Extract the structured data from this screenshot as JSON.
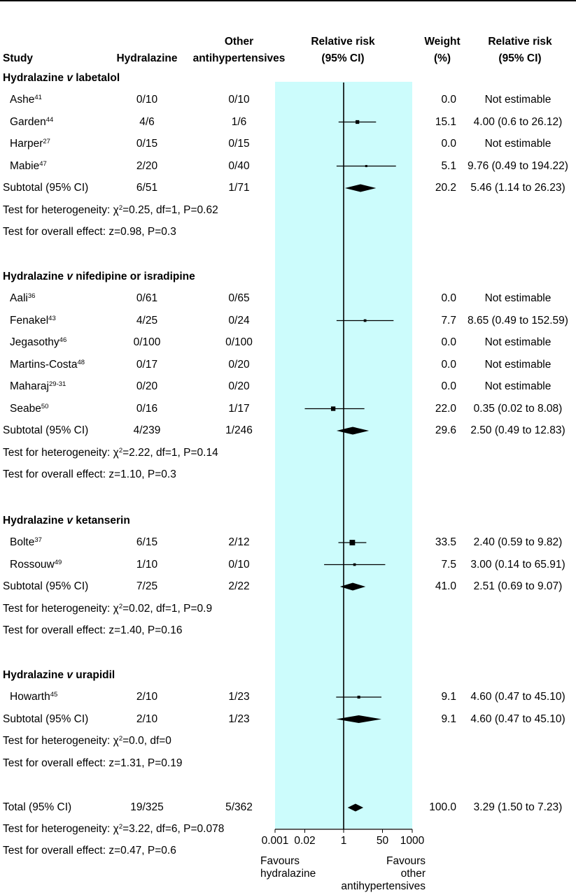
{
  "header": {
    "study": "Study",
    "hydralazine": "Hydralazine",
    "other_line1": "Other",
    "other_line2": "antihypertensives",
    "rr_line1": "Relative risk",
    "rr_line2": "(95% CI)",
    "weight_line1": "Weight",
    "weight_line2": "(%)",
    "rrv_line1": "Relative risk",
    "rrv_line2": "(95% CI)"
  },
  "chart_data": {
    "type": "forest",
    "xscale": "log",
    "xlim": [
      0.001,
      1000
    ],
    "ticks": [
      "0.001",
      "0.02",
      "1",
      "50",
      "1000"
    ],
    "tick_values": [
      0.001,
      0.02,
      1,
      50,
      1000
    ],
    "favours_left": [
      "Favours",
      "hydralazine"
    ],
    "favours_right": [
      "Favours",
      "other",
      "antihypertensives"
    ],
    "groups": [
      {
        "title_a": "Hydralazine ",
        "title_v": "v",
        "title_b": " labetalol",
        "studies": [
          {
            "name": "Ashe",
            "ref": "41",
            "hyd": "0/10",
            "oth": "0/10",
            "weight": "0.0",
            "rr_text": "Not estimable",
            "rr": null,
            "lo": null,
            "hi": null
          },
          {
            "name": "Garden",
            "ref": "44",
            "hyd": "4/6",
            "oth": "1/6",
            "weight": "15.1",
            "rr_text": "4.00 (0.6 to 26.12)",
            "rr": 4.0,
            "lo": 0.6,
            "hi": 26.12
          },
          {
            "name": "Harper",
            "ref": "27",
            "hyd": "0/15",
            "oth": "0/15",
            "weight": "0.0",
            "rr_text": "Not estimable",
            "rr": null,
            "lo": null,
            "hi": null
          },
          {
            "name": "Mabie",
            "ref": "47",
            "hyd": "2/20",
            "oth": "0/40",
            "weight": "5.1",
            "rr_text": "9.76 (0.49 to 194.22)",
            "rr": 9.76,
            "lo": 0.49,
            "hi": 194.22
          }
        ],
        "subtotal": {
          "label": "Subtotal (95% CI)",
          "hyd": "6/51",
          "oth": "1/71",
          "weight": "20.2",
          "rr_text": "5.46 (1.14 to 26.23)",
          "rr": 5.46,
          "lo": 1.14,
          "hi": 26.23
        },
        "het_prefix": "Test for heterogeneity: ",
        "het_chi": "χ",
        "het_sup": "2",
        "het_rest": "=0.25, df=1, P=0.62",
        "overall": "Test for overall effect: z=0.98, P=0.3"
      },
      {
        "title_a": "Hydralazine ",
        "title_v": "v",
        "title_b": " nifedipine or isradipine",
        "studies": [
          {
            "name": "Aali",
            "ref": "36",
            "hyd": "0/61",
            "oth": "0/65",
            "weight": "0.0",
            "rr_text": "Not estimable",
            "rr": null,
            "lo": null,
            "hi": null
          },
          {
            "name": "Fenakel",
            "ref": "43",
            "hyd": "4/25",
            "oth": "0/24",
            "weight": "7.7",
            "rr_text": "8.65 (0.49 to 152.59)",
            "rr": 8.65,
            "lo": 0.49,
            "hi": 152.59
          },
          {
            "name": "Jegasothy",
            "ref": "46",
            "hyd": "0/100",
            "oth": "0/100",
            "weight": "0.0",
            "rr_text": "Not estimable",
            "rr": null,
            "lo": null,
            "hi": null
          },
          {
            "name": "Martins-Costa",
            "ref": "48",
            "hyd": "0/17",
            "oth": "0/20",
            "weight": "0.0",
            "rr_text": "Not estimable",
            "rr": null,
            "lo": null,
            "hi": null
          },
          {
            "name": "Maharaj",
            "ref": "29-31",
            "hyd": "0/20",
            "oth": "0/20",
            "weight": "0.0",
            "rr_text": "Not estimable",
            "rr": null,
            "lo": null,
            "hi": null
          },
          {
            "name": "Seabe",
            "ref": "50",
            "hyd": "0/16",
            "oth": "1/17",
            "weight": "22.0",
            "rr_text": "0.35 (0.02 to 8.08)",
            "rr": 0.35,
            "lo": 0.02,
            "hi": 8.08
          }
        ],
        "subtotal": {
          "label": "Subtotal (95% CI)",
          "hyd": "4/239",
          "oth": "1/246",
          "weight": "29.6",
          "rr_text": "2.50 (0.49 to 12.83)",
          "rr": 2.5,
          "lo": 0.49,
          "hi": 12.83
        },
        "het_prefix": "Test for heterogeneity: ",
        "het_chi": "χ",
        "het_sup": "2",
        "het_rest": "=2.22, df=1, P=0.14",
        "overall": "Test for overall effect: z=1.10, P=0.3"
      },
      {
        "title_a": "Hydralazine ",
        "title_v": "v",
        "title_b": " ketanserin",
        "studies": [
          {
            "name": "Bolte",
            "ref": "37",
            "hyd": "6/15",
            "oth": "2/12",
            "weight": "33.5",
            "rr_text": "2.40 (0.59 to 9.82)",
            "rr": 2.4,
            "lo": 0.59,
            "hi": 9.82
          },
          {
            "name": "Rossouw",
            "ref": "49",
            "hyd": "1/10",
            "oth": "0/10",
            "weight": "7.5",
            "rr_text": "3.00 (0.14 to 65.91)",
            "rr": 3.0,
            "lo": 0.14,
            "hi": 65.91
          }
        ],
        "subtotal": {
          "label": "Subtotal (95% CI)",
          "hyd": "7/25",
          "oth": "2/22",
          "weight": "41.0",
          "rr_text": "2.51 (0.69 to 9.07)",
          "rr": 2.51,
          "lo": 0.69,
          "hi": 9.07
        },
        "het_prefix": "Test for heterogeneity: ",
        "het_chi": "χ",
        "het_sup": "2",
        "het_rest": "=0.02, df=1, P=0.9",
        "overall": "Test for overall effect: z=1.40, P=0.16"
      },
      {
        "title_a": "Hydralazine ",
        "title_v": "v",
        "title_b": " urapidil",
        "studies": [
          {
            "name": "Howarth",
            "ref": "45",
            "hyd": "2/10",
            "oth": "1/23",
            "weight": "9.1",
            "rr_text": "4.60 (0.47 to 45.10)",
            "rr": 4.6,
            "lo": 0.47,
            "hi": 45.1
          }
        ],
        "subtotal": {
          "label": "Subtotal (95% CI)",
          "hyd": "2/10",
          "oth": "1/23",
          "weight": "9.1",
          "rr_text": "4.60 (0.47 to 45.10)",
          "rr": 4.6,
          "lo": 0.47,
          "hi": 45.1
        },
        "het_prefix": "Test for heterogeneity: ",
        "het_chi": "χ",
        "het_sup": "2",
        "het_rest": "=0.0, df=0",
        "overall": "Test for overall effect: z=1.31, P=0.19"
      }
    ],
    "total": {
      "label": "Total (95% CI)",
      "hyd": "19/325",
      "oth": "5/362",
      "weight": "100.0",
      "rr_text": "3.29 (1.50 to 7.23)",
      "rr": 3.29,
      "lo": 1.5,
      "hi": 7.23
    },
    "total_het_prefix": "Test for heterogeneity: ",
    "total_het_chi": "χ",
    "total_het_sup": "2",
    "total_het_rest": "=3.22, df=6, P=0.078",
    "total_overall": "Test for overall effect: z=0.47, P=0.6",
    "colors": {
      "shade": "#ccfcfc",
      "ink": "#000000"
    }
  }
}
